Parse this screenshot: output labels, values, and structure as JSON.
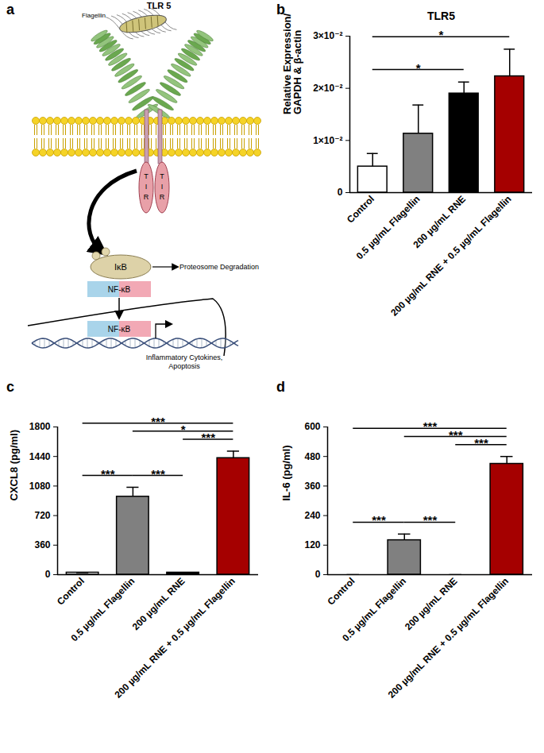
{
  "diagram": {
    "panel_label": "a",
    "title": "TLR 5",
    "ligand": "Flagellin",
    "tir": [
      "T",
      "I",
      "R"
    ],
    "inhibitor": "IκB",
    "degradation": "Proteosome Degradation",
    "factor": "NF-κB",
    "outcome": [
      "Inflammatory Cytokines,",
      "Apoptosis"
    ]
  },
  "chart_data": [
    {
      "type": "bar",
      "panel_label": "b",
      "title": "TLR5",
      "ylabel": "Relative Expression/\nGAPDH & β-actin",
      "categories": [
        "Control",
        "0.5 µg/mL Flagellin",
        "200 µg/mL RNE",
        "200 µg/mL RNE + 0.5 µg/mL Flagellin"
      ],
      "values": [
        0.005,
        0.0113,
        0.019,
        0.0223
      ],
      "errors": [
        0.0025,
        0.0055,
        0.0022,
        0.0052
      ],
      "colors": [
        "#ffffff",
        "#808080",
        "#000000",
        "#a50000"
      ],
      "ylim": [
        0,
        0.03
      ],
      "yticks": [
        0,
        {
          "value": 0.01,
          "label": "1×10⁻²"
        },
        {
          "value": 0.02,
          "label": "2×10⁻²"
        },
        {
          "value": 0.03,
          "label": "3×10⁻²"
        }
      ],
      "significance": [
        {
          "from": "Control",
          "to": "200 µg/mL RNE",
          "label": "*"
        },
        {
          "from": "Control",
          "to": "200 µg/mL RNE + 0.5 µg/mL Flagellin",
          "label": "*"
        }
      ]
    },
    {
      "type": "bar",
      "panel_label": "c",
      "ylabel": "CXCL8 (pg/ml)",
      "categories": [
        "Control",
        "0.5 µg/mL Flagellin",
        "200 µg/mL RNE",
        "200 µg/mL RNE + 0.5 µg/mL Flagellin"
      ],
      "values": [
        25,
        950,
        25,
        1420
      ],
      "errors": [
        0,
        115,
        0,
        85
      ],
      "colors": [
        "#ffffff",
        "#808080",
        "#000000",
        "#a50000"
      ],
      "ylim": [
        0,
        1800
      ],
      "yticks": [
        0,
        360,
        720,
        1080,
        1440,
        1800
      ],
      "significance": [
        {
          "from": "Control",
          "to": "0.5 µg/mL Flagellin",
          "label": "***"
        },
        {
          "from": "0.5 µg/mL Flagellin",
          "to": "200 µg/mL RNE",
          "label": "***"
        },
        {
          "from": "200 µg/mL RNE",
          "to": "200 µg/mL RNE + 0.5 µg/mL Flagellin",
          "label": "***"
        },
        {
          "from": "0.5 µg/mL Flagellin",
          "to": "200 µg/mL RNE + 0.5 µg/mL Flagellin",
          "label": "*"
        },
        {
          "from": "Control",
          "to": "200 µg/mL RNE + 0.5 µg/mL Flagellin",
          "label": "***"
        }
      ]
    },
    {
      "type": "bar",
      "panel_label": "d",
      "ylabel": "IL-6 (pg/ml)",
      "categories": [
        "Control",
        "0.5 µg/mL Flagellin",
        "200 µg/mL RNE",
        "200 µg/mL RNE + 0.5 µg/mL Flagellin"
      ],
      "values": [
        0,
        140,
        0,
        450
      ],
      "errors": [
        0,
        25,
        0,
        30
      ],
      "colors": [
        "#ffffff",
        "#808080",
        "#000000",
        "#a50000"
      ],
      "ylim": [
        0,
        600
      ],
      "yticks": [
        0,
        120,
        240,
        360,
        480,
        600
      ],
      "significance": [
        {
          "from": "Control",
          "to": "0.5 µg/mL Flagellin",
          "label": "***"
        },
        {
          "from": "0.5 µg/mL Flagellin",
          "to": "200 µg/mL RNE",
          "label": "***"
        },
        {
          "from": "200 µg/mL RNE",
          "to": "200 µg/mL RNE + 0.5 µg/mL Flagellin",
          "label": "***"
        },
        {
          "from": "0.5 µg/mL Flagellin",
          "to": "200 µg/mL RNE + 0.5 µg/mL Flagellin",
          "label": "***"
        },
        {
          "from": "Control",
          "to": "200 µg/mL RNE + 0.5 µg/mL Flagellin",
          "label": "***"
        }
      ]
    }
  ]
}
